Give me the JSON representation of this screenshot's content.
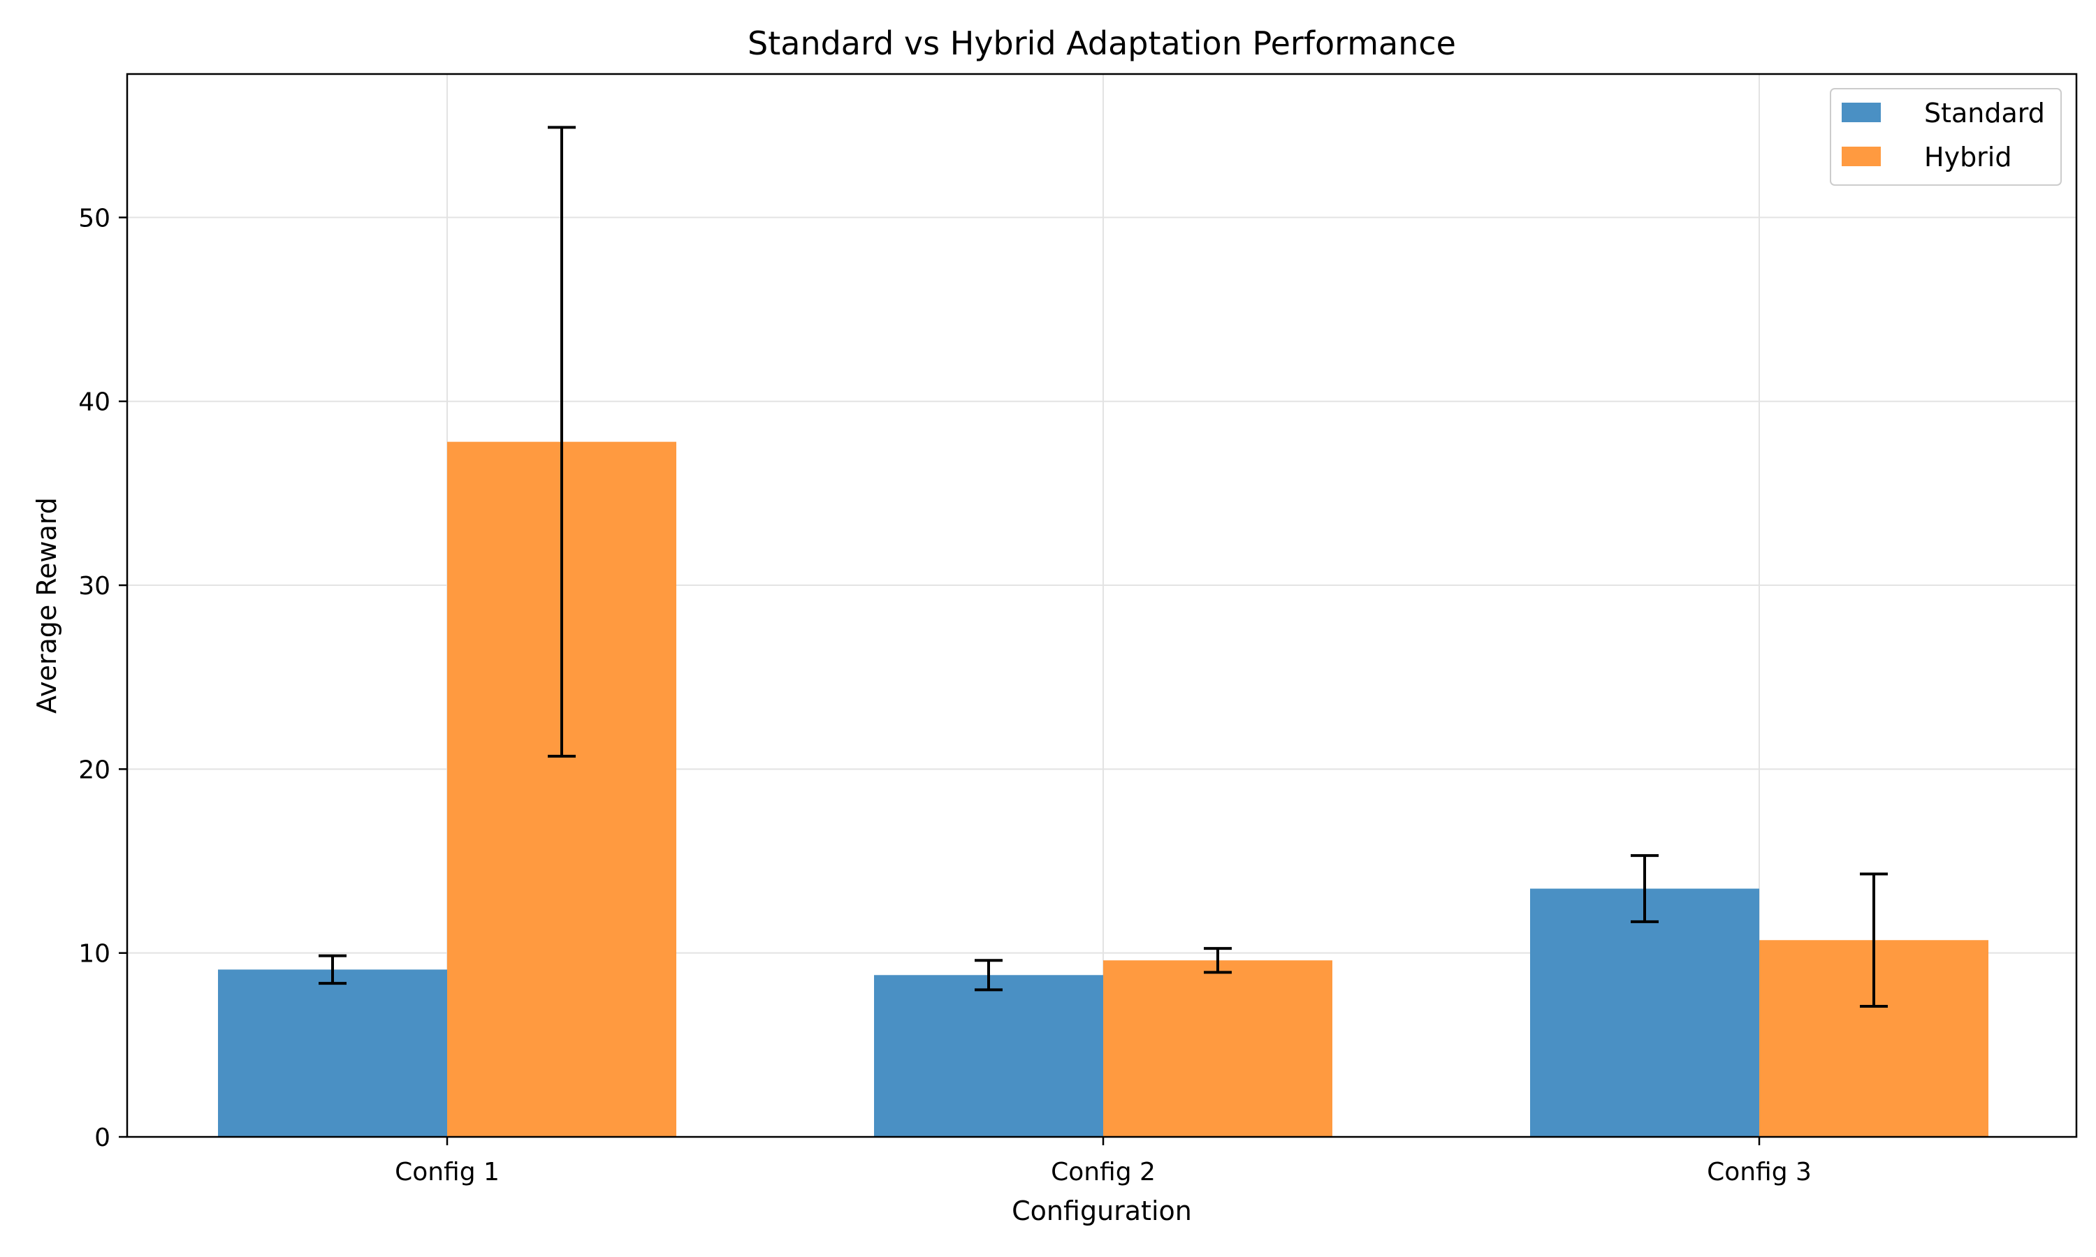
{
  "chart_data": {
    "type": "bar",
    "title": "Standard vs Hybrid Adaptation Performance",
    "xlabel": "Configuration",
    "ylabel": "Average Reward",
    "categories": [
      "Config 1",
      "Config 2",
      "Config 3"
    ],
    "series": [
      {
        "name": "Standard",
        "color": "#4a90c4",
        "values": [
          9.1,
          8.8,
          13.5
        ],
        "errors": [
          0.75,
          0.8,
          1.8
        ]
      },
      {
        "name": "Hybrid",
        "color": "#ff9a40",
        "values": [
          37.8,
          9.6,
          10.7
        ],
        "errors": [
          17.1,
          0.65,
          3.6
        ]
      }
    ],
    "ylim": [
      0,
      57.8
    ],
    "yticks": [
      0,
      10,
      20,
      30,
      40,
      50
    ],
    "grid": true,
    "legend_position": "top-right"
  }
}
